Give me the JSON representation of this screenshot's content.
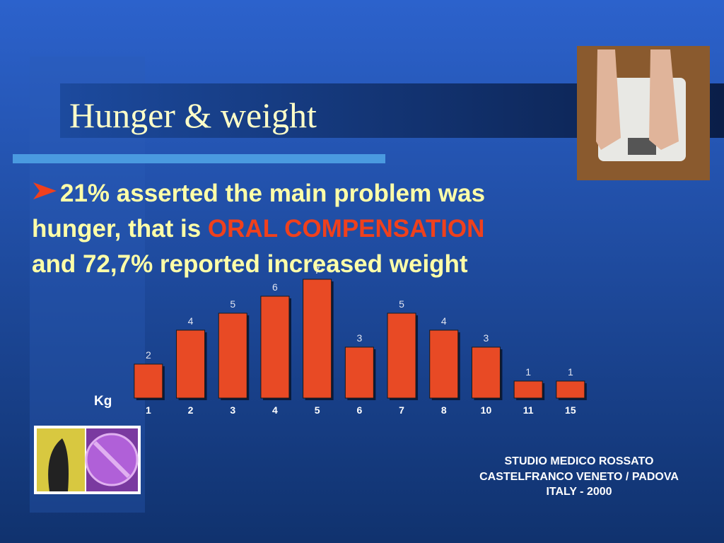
{
  "slide": {
    "title": "Hunger & weight",
    "bullet": [
      "21%  asserted the main problem was",
      "hunger, that is ",
      "ORAL COMPENSATION",
      "and 72,7% reported increased weight"
    ],
    "footer": [
      "STUDIO MEDICO ROSSATO",
      "CASTELFRANCO VENETO / PADOVA",
      "ITALY - 2000"
    ]
  },
  "chart_data": {
    "type": "bar",
    "x_label": "Kg",
    "categories": [
      "1",
      "2",
      "3",
      "4",
      "5",
      "6",
      "7",
      "8",
      "10",
      "11",
      "15"
    ],
    "values": [
      2,
      4,
      5,
      6,
      7,
      3,
      5,
      4,
      3,
      1,
      1
    ],
    "color": "#e84a25"
  }
}
